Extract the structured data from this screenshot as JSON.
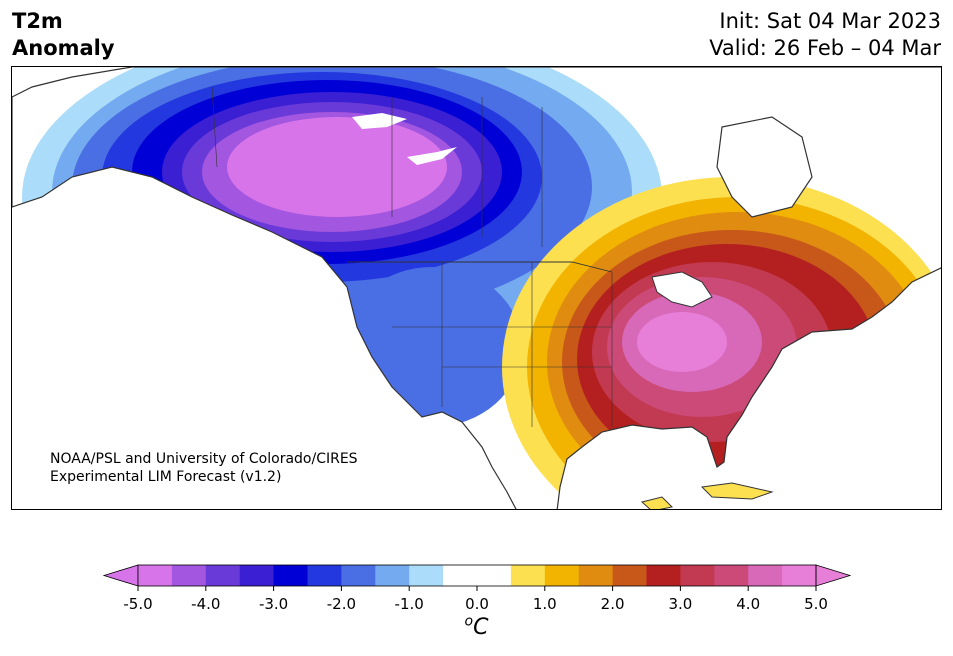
{
  "header": {
    "title_line1": "T2m",
    "title_line2": "Anomaly",
    "init": "Init: Sat 04 Mar 2023",
    "valid": "Valid: 26 Feb – 04 Mar"
  },
  "map": {
    "region": "North America",
    "variable": "2m temperature anomaly",
    "credit_line1": "NOAA/PSL and University of Colorado/CIRES",
    "credit_line2": "Experimental LIM Forecast (v1.2)"
  },
  "colorbar": {
    "unit_label": "oC",
    "ticks": [
      "-5.0",
      "-4.0",
      "-3.0",
      "-2.0",
      "-1.0",
      "0.0",
      "1.0",
      "2.0",
      "3.0",
      "4.0",
      "5.0"
    ],
    "colors": [
      "#d874ea",
      "#a356e0",
      "#6a3ad8",
      "#3b1fd2",
      "#0000d6",
      "#2338de",
      "#4a6ee4",
      "#74aaf0",
      "#abdcfa",
      "#ffffff",
      "#ffffff",
      "#fde050",
      "#f2b400",
      "#e08c10",
      "#c8581a",
      "#b42020",
      "#c23a52",
      "#cc4a78",
      "#d868b8",
      "#e77ed8"
    ],
    "extend_min_color": "#d874ea",
    "extend_max_color": "#e77ed8"
  }
}
